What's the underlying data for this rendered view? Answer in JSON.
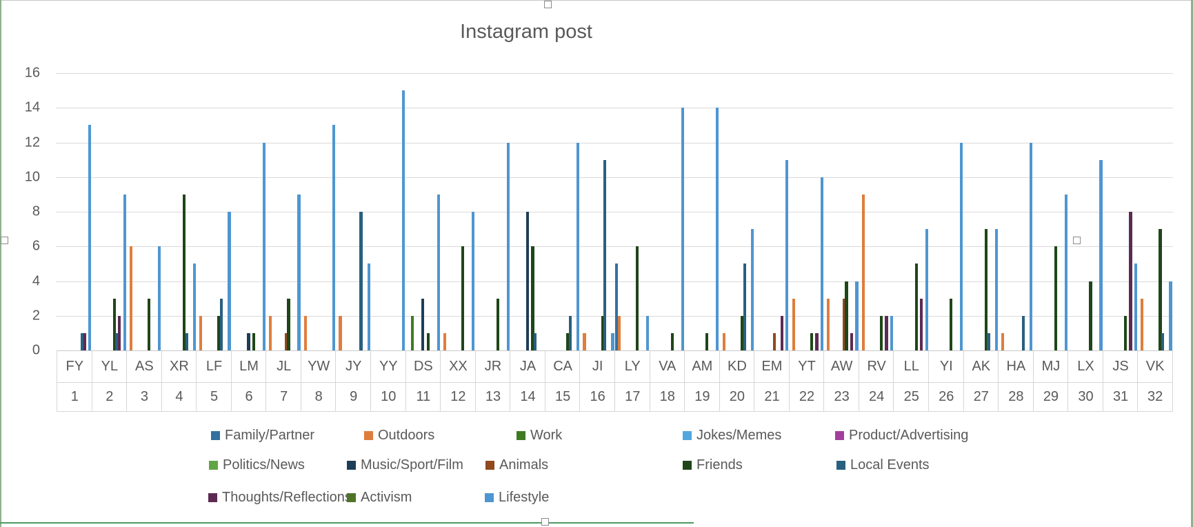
{
  "title": "Instagram post",
  "chart_data": {
    "type": "bar",
    "title": "Instagram post",
    "xlabel": "",
    "ylabel": "",
    "ylim": [
      0,
      16
    ],
    "yticks": [
      0,
      2,
      4,
      6,
      8,
      10,
      12,
      14,
      16
    ],
    "grid": true,
    "legend_position": "bottom",
    "categories": [
      "FY",
      "YL",
      "AS",
      "XR",
      "LF",
      "LM",
      "JL",
      "YW",
      "JY",
      "YY",
      "DS",
      "XX",
      "JR",
      "JA",
      "CA",
      "JI",
      "LY",
      "VA",
      "AM",
      "KD",
      "EM",
      "YT",
      "AW",
      "RV",
      "LL",
      "YI",
      "AK",
      "HA",
      "MJ",
      "LX",
      "JS",
      "VK"
    ],
    "category_numbers": [
      "1",
      "2",
      "3",
      "4",
      "5",
      "6",
      "7",
      "8",
      "9",
      "10",
      "11",
      "12",
      "13",
      "14",
      "15",
      "16",
      "17",
      "18",
      "19",
      "20",
      "21",
      "22",
      "23",
      "24",
      "25",
      "26",
      "27",
      "28",
      "29",
      "30",
      "31",
      "32"
    ],
    "series": [
      {
        "name": "Family/Partner",
        "color": "#33719f",
        "values": [
          0,
          0,
          0,
          0,
          0,
          0,
          0,
          0,
          0,
          0,
          0,
          0,
          0,
          0,
          0,
          0,
          5,
          0,
          0,
          0,
          0,
          0,
          0,
          0,
          0,
          0,
          0,
          0,
          0,
          0,
          0,
          0
        ]
      },
      {
        "name": "Outdoors",
        "color": "#de7e3c",
        "values": [
          0,
          0,
          6,
          0,
          2,
          0,
          2,
          2,
          2,
          0,
          0,
          1,
          0,
          0,
          0,
          1,
          2,
          0,
          0,
          1,
          0,
          3,
          3,
          9,
          0,
          0,
          0,
          1,
          0,
          0,
          0,
          3
        ]
      },
      {
        "name": "Work",
        "color": "#407a23",
        "values": [
          0,
          0,
          0,
          0,
          0,
          0,
          0,
          0,
          0,
          0,
          2,
          0,
          0,
          0,
          0,
          0,
          0,
          0,
          0,
          0,
          0,
          0,
          0,
          0,
          0,
          0,
          0,
          0,
          0,
          0,
          0,
          0
        ]
      },
      {
        "name": "Jokes/Memes",
        "color": "#54a6de",
        "values": [
          0,
          0,
          0,
          0,
          0,
          0,
          0,
          0,
          0,
          0,
          0,
          0,
          0,
          0,
          0,
          0,
          0,
          0,
          0,
          0,
          0,
          0,
          0,
          0,
          0,
          0,
          0,
          0,
          0,
          0,
          0,
          0
        ]
      },
      {
        "name": "Product/Advertising",
        "color": "#a23f9c",
        "values": [
          0,
          0,
          0,
          0,
          0,
          0,
          0,
          0,
          0,
          0,
          0,
          0,
          0,
          0,
          0,
          0,
          0,
          0,
          0,
          0,
          0,
          0,
          0,
          0,
          0,
          0,
          0,
          0,
          0,
          0,
          0,
          0
        ]
      },
      {
        "name": "Politics/News",
        "color": "#62a544",
        "values": [
          0,
          0,
          0,
          0,
          0,
          0,
          0,
          0,
          0,
          0,
          0,
          0,
          0,
          0,
          0,
          0,
          0,
          0,
          0,
          0,
          0,
          0,
          0,
          0,
          0,
          0,
          0,
          0,
          0,
          0,
          0,
          0
        ]
      },
      {
        "name": "Music/Sport/Film",
        "color": "#1e3d56",
        "values": [
          0,
          0,
          0,
          0,
          0,
          1,
          0,
          0,
          0,
          0,
          3,
          0,
          0,
          8,
          0,
          0,
          0,
          0,
          0,
          0,
          0,
          0,
          0,
          0,
          0,
          0,
          0,
          0,
          0,
          0,
          0,
          0
        ]
      },
      {
        "name": "Animals",
        "color": "#91491f",
        "values": [
          0,
          0,
          0,
          0,
          0,
          0,
          1,
          0,
          0,
          0,
          0,
          0,
          0,
          0,
          0,
          0,
          0,
          0,
          0,
          0,
          1,
          0,
          3,
          0,
          0,
          0,
          0,
          0,
          0,
          0,
          0,
          0
        ]
      },
      {
        "name": "Friends",
        "color": "#1f4618",
        "values": [
          0,
          3,
          3,
          9,
          2,
          1,
          3,
          0,
          0,
          0,
          1,
          6,
          3,
          6,
          1,
          2,
          6,
          1,
          1,
          2,
          0,
          1,
          4,
          2,
          5,
          3,
          7,
          0,
          6,
          4,
          2,
          7
        ]
      },
      {
        "name": "Local Events",
        "color": "#28607f",
        "values": [
          1,
          1,
          0,
          1,
          3,
          0,
          0,
          0,
          8,
          0,
          0,
          0,
          0,
          1,
          2,
          11,
          0,
          0,
          0,
          5,
          0,
          0,
          0,
          0,
          0,
          0,
          1,
          2,
          0,
          0,
          0,
          1
        ]
      },
      {
        "name": "Thoughts/Reflections",
        "color": "#5d2a53",
        "values": [
          1,
          2,
          0,
          0,
          0,
          0,
          0,
          0,
          0,
          0,
          0,
          0,
          0,
          0,
          0,
          0,
          0,
          0,
          0,
          0,
          2,
          1,
          1,
          2,
          3,
          0,
          0,
          0,
          0,
          0,
          8,
          0
        ]
      },
      {
        "name": "Activism",
        "color": "#507426",
        "values": [
          0,
          0,
          0,
          0,
          0,
          0,
          0,
          0,
          0,
          0,
          0,
          0,
          0,
          0,
          0,
          0,
          0,
          0,
          0,
          0,
          0,
          0,
          0,
          0,
          0,
          0,
          0,
          0,
          0,
          0,
          0,
          0
        ]
      },
      {
        "name": "Lifestyle",
        "color": "#4e96d1",
        "values": [
          13,
          9,
          6,
          5,
          8,
          12,
          9,
          13,
          5,
          15,
          9,
          8,
          12,
          0,
          12,
          1,
          2,
          14,
          14,
          7,
          11,
          10,
          4,
          2,
          7,
          12,
          7,
          12,
          9,
          11,
          5,
          4
        ]
      }
    ]
  },
  "legend": {
    "rows": [
      [
        0,
        1,
        2,
        3,
        4
      ],
      [
        5,
        6,
        7,
        8,
        9
      ],
      [
        10,
        11,
        12
      ]
    ]
  },
  "selection": {
    "handles": [
      "top-center",
      "left-middle",
      "right-middle",
      "bottom-center"
    ]
  }
}
